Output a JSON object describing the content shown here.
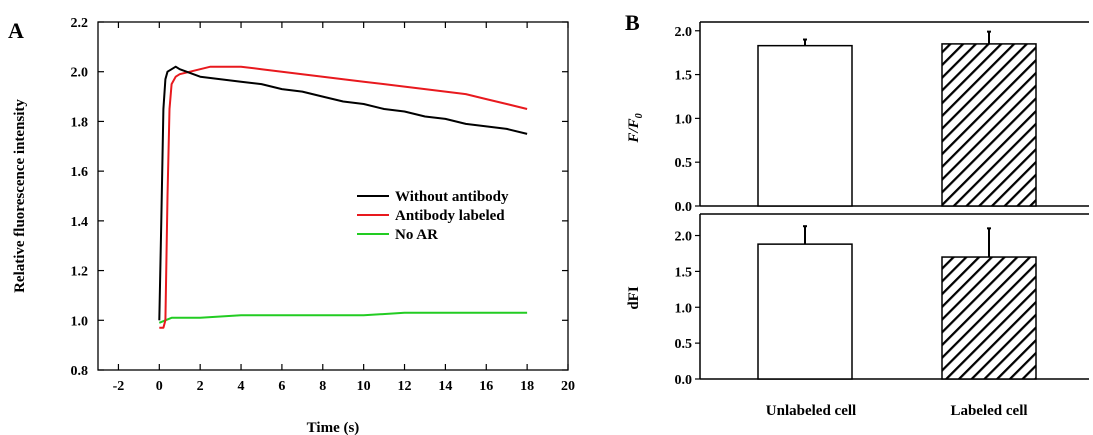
{
  "panels": {
    "a_letter": "A",
    "b_letter": "B"
  },
  "chart_data": [
    {
      "panel": "A",
      "type": "line",
      "xlabel": "Time (s)",
      "ylabel": "Relative fluorescence intensity",
      "xlim": [
        -3,
        20
      ],
      "ylim": [
        0.8,
        2.2
      ],
      "xticks": [
        -2,
        0,
        2,
        4,
        6,
        8,
        10,
        12,
        14,
        16,
        18,
        20
      ],
      "yticks": [
        0.8,
        1.0,
        1.2,
        1.4,
        1.6,
        1.8,
        2.0,
        2.2
      ],
      "legend_position": "center-right",
      "series": [
        {
          "name": "Without antibody",
          "color": "#000000",
          "x": [
            0,
            0.1,
            0.2,
            0.3,
            0.4,
            0.6,
            0.8,
            1,
            2,
            3,
            4,
            5,
            6,
            7,
            8,
            9,
            10,
            11,
            12,
            13,
            14,
            15,
            16,
            17,
            18
          ],
          "y": [
            1.0,
            1.4,
            1.85,
            1.97,
            2.0,
            2.01,
            2.02,
            2.01,
            1.98,
            1.97,
            1.96,
            1.95,
            1.93,
            1.92,
            1.9,
            1.88,
            1.87,
            1.85,
            1.84,
            1.82,
            1.81,
            1.79,
            1.78,
            1.77,
            1.75
          ]
        },
        {
          "name": "Antibody labeled",
          "color": "#e8191e",
          "x": [
            0,
            0.2,
            0.3,
            0.4,
            0.5,
            0.6,
            0.8,
            1,
            1.5,
            2,
            2.5,
            3,
            4,
            5,
            6,
            7,
            8,
            9,
            10,
            11,
            12,
            13,
            14,
            15,
            16,
            17,
            18
          ],
          "y": [
            0.97,
            0.97,
            1.0,
            1.5,
            1.85,
            1.95,
            1.98,
            1.99,
            2.0,
            2.01,
            2.02,
            2.02,
            2.02,
            2.01,
            2.0,
            1.99,
            1.98,
            1.97,
            1.96,
            1.95,
            1.94,
            1.93,
            1.92,
            1.91,
            1.89,
            1.87,
            1.85
          ]
        },
        {
          "name": "No AR",
          "color": "#22cc22",
          "x": [
            0,
            0.3,
            0.6,
            1,
            2,
            4,
            6,
            8,
            10,
            12,
            14,
            16,
            18
          ],
          "y": [
            0.99,
            1.0,
            1.01,
            1.01,
            1.01,
            1.02,
            1.02,
            1.02,
            1.02,
            1.03,
            1.03,
            1.03,
            1.03
          ]
        }
      ]
    },
    {
      "panel": "B-top",
      "type": "bar",
      "ylabel": "F/F0",
      "ylabel_main": "F/F",
      "ylabel_sub": "0",
      "categories": [
        "Unlabeled cell",
        "Labeled cell"
      ],
      "values": [
        1.83,
        1.85
      ],
      "errors": [
        0.07,
        0.14
      ],
      "ylim": [
        0,
        2.1
      ],
      "yticks": [
        0.0,
        0.5,
        1.0,
        1.5,
        2.0
      ],
      "fills": [
        "plain",
        "hatched"
      ]
    },
    {
      "panel": "B-bottom",
      "type": "bar",
      "ylabel": "dFI",
      "categories": [
        "Unlabeled cell",
        "Labeled cell"
      ],
      "values": [
        1.88,
        1.7
      ],
      "errors": [
        0.25,
        0.4
      ],
      "ylim": [
        0,
        2.3
      ],
      "yticks": [
        0.0,
        0.5,
        1.0,
        1.5,
        2.0
      ],
      "fills": [
        "plain",
        "hatched"
      ]
    }
  ]
}
